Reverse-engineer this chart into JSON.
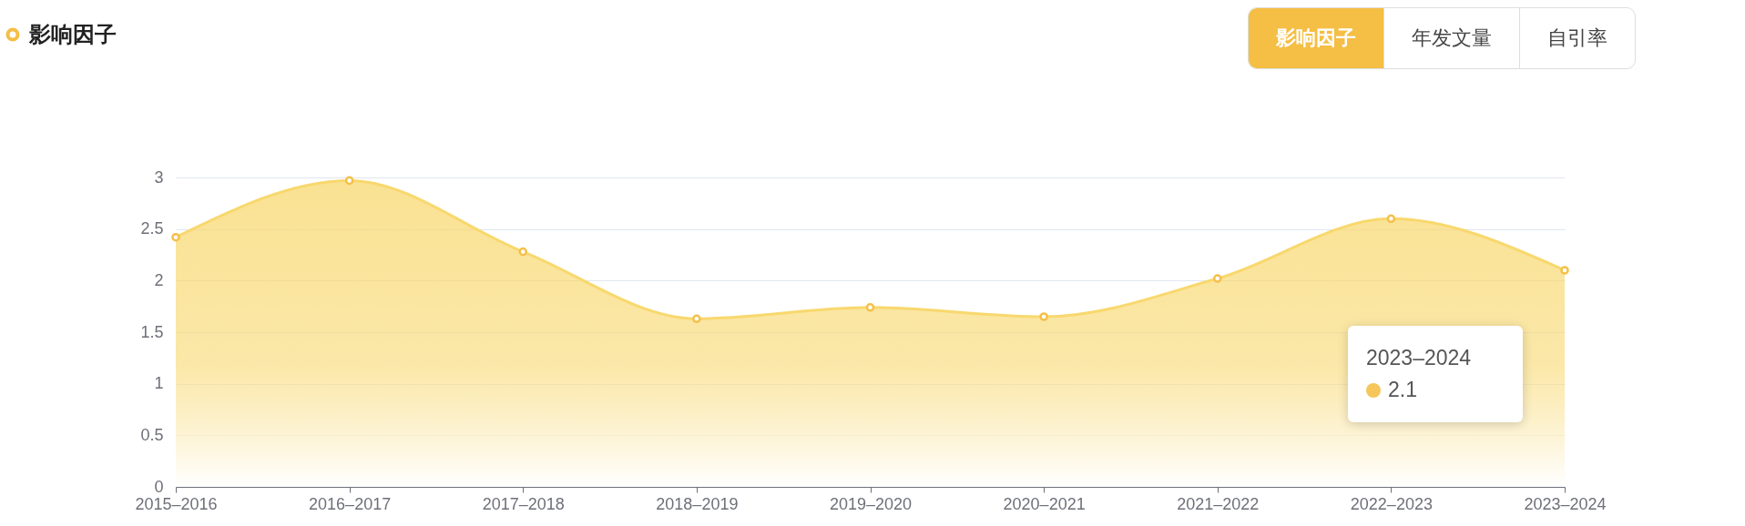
{
  "chart_data": {
    "type": "area",
    "title": "影响因子",
    "categories": [
      "2015–2016",
      "2016–2017",
      "2017–2018",
      "2018–2019",
      "2019–2020",
      "2020–2021",
      "2021–2022",
      "2022–2023",
      "2023–2024"
    ],
    "series": [
      {
        "color": "#f8d86e",
        "values": [
          2.42,
          2.97,
          2.28,
          1.63,
          1.74,
          1.65,
          2.02,
          2.6,
          2.1
        ]
      }
    ],
    "ylim": [
      0,
      3
    ],
    "yticks": [
      0,
      0.5,
      1,
      1.5,
      2,
      2.5,
      3
    ],
    "grid": "y",
    "marker": "circle",
    "annotations": [
      "年发文量",
      "自引率",
      "2023–2024",
      "2.1"
    ]
  }
}
